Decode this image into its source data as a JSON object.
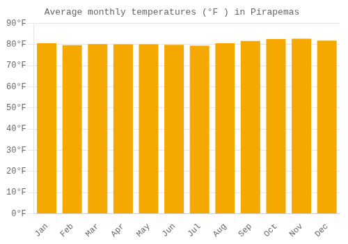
{
  "chart_data": {
    "type": "bar",
    "title": "Average monthly temperatures (°F ) in Pirapemas",
    "categories": [
      "Jan",
      "Feb",
      "Mar",
      "Apr",
      "May",
      "Jun",
      "Jul",
      "Aug",
      "Sep",
      "Oct",
      "Nov",
      "Dec"
    ],
    "values": [
      80.6,
      79.7,
      80.2,
      80.1,
      80.1,
      79.9,
      79.5,
      80.6,
      81.7,
      82.6,
      82.8,
      81.9
    ],
    "color": "#F5A800",
    "ylim": [
      0,
      90
    ],
    "yticks": [
      {
        "value": 0,
        "label": "0°F"
      },
      {
        "value": 10,
        "label": "10°F"
      },
      {
        "value": 20,
        "label": "20°F"
      },
      {
        "value": 30,
        "label": "30°F"
      },
      {
        "value": 40,
        "label": "40°F"
      },
      {
        "value": 50,
        "label": "50°F"
      },
      {
        "value": 60,
        "label": "60°F"
      },
      {
        "value": 70,
        "label": "70°F"
      },
      {
        "value": 80,
        "label": "80°F"
      },
      {
        "value": 90,
        "label": "90°F"
      }
    ],
    "grid": true
  }
}
